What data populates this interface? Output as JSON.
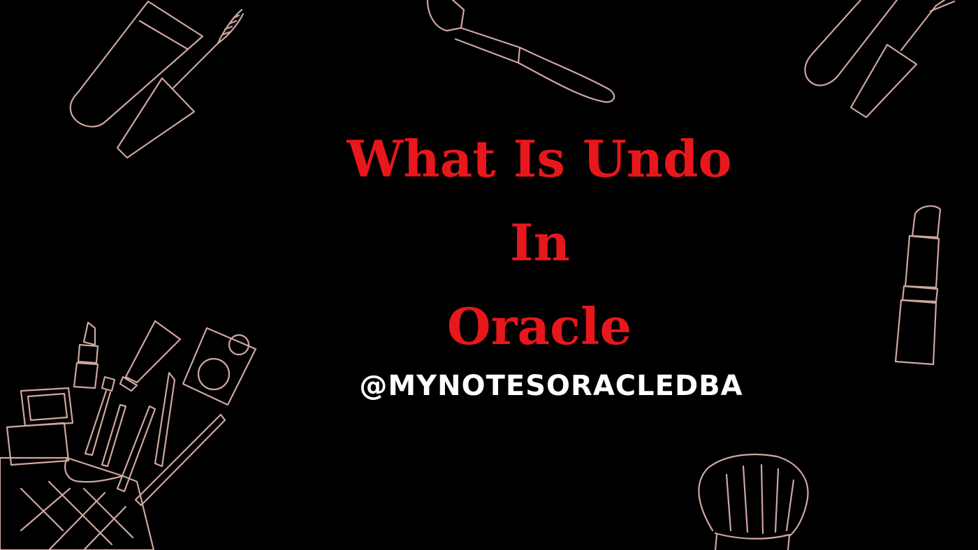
{
  "title": {
    "line1": "What Is Undo",
    "line2": "In",
    "line3": "Oracle",
    "color": "#e8171c"
  },
  "handle": {
    "text": "@MYNOTESORACLEDBA",
    "color": "#ffffff"
  },
  "background_color": "#000000",
  "illustration_stroke_color": "#cfa7a0",
  "decorations": [
    "mascara-icon",
    "makeup-brush-icon",
    "lip-gloss-icon",
    "lipstick-icon",
    "cosmetics-bag-icon",
    "kabuki-brush-icon"
  ]
}
